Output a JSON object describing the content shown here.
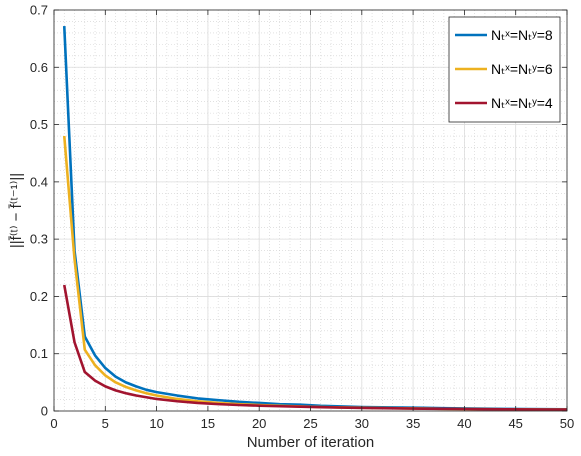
{
  "chart_data": {
    "type": "line",
    "title": "",
    "xlabel": "Number of iteration",
    "ylabel": "||f̄⁽ᵗ⁾ − f̄⁽ᵗ⁻¹⁾||",
    "xlim": [
      0,
      50
    ],
    "ylim": [
      0,
      0.7
    ],
    "xticks": [
      0,
      5,
      10,
      15,
      20,
      25,
      30,
      35,
      40,
      45,
      50
    ],
    "yticks": [
      0,
      0.1,
      0.2,
      0.3,
      0.4,
      0.5,
      0.6,
      0.7
    ],
    "grid": true,
    "minor_grid": true,
    "legend_position": "top-right",
    "series": [
      {
        "name": "Nₜˣ=Nₜʸ=8",
        "color": "#0072BD",
        "x": [
          1,
          2,
          3,
          4,
          5,
          6,
          7,
          8,
          9,
          10,
          12,
          14,
          16,
          18,
          20,
          22,
          24,
          26,
          28,
          30,
          32,
          34,
          36,
          38,
          40,
          42,
          44,
          46,
          48,
          50
        ],
        "y": [
          0.672,
          0.28,
          0.13,
          0.097,
          0.075,
          0.06,
          0.05,
          0.043,
          0.037,
          0.033,
          0.027,
          0.022,
          0.019,
          0.016,
          0.014,
          0.012,
          0.011,
          0.009,
          0.008,
          0.007,
          0.0065,
          0.006,
          0.0055,
          0.005,
          0.0045,
          0.004,
          0.0037,
          0.0034,
          0.0031,
          0.003
        ]
      },
      {
        "name": "Nₜˣ=Nₜʸ=6",
        "color": "#EDB120",
        "x": [
          1,
          2,
          3,
          4,
          5,
          6,
          7,
          8,
          9,
          10,
          12,
          14,
          16,
          18,
          20,
          22,
          24,
          26,
          28,
          30,
          32,
          34,
          36,
          38,
          40,
          42,
          44,
          46,
          48,
          50
        ],
        "y": [
          0.48,
          0.265,
          0.107,
          0.08,
          0.062,
          0.05,
          0.042,
          0.036,
          0.031,
          0.027,
          0.021,
          0.017,
          0.014,
          0.012,
          0.0105,
          0.009,
          0.008,
          0.007,
          0.0063,
          0.0057,
          0.0051,
          0.0046,
          0.0042,
          0.0038,
          0.0035,
          0.0032,
          0.003,
          0.0028,
          0.0026,
          0.0025
        ]
      },
      {
        "name": "Nₜˣ=Nₜʸ=4",
        "color": "#A2142F",
        "x": [
          1,
          2,
          3,
          4,
          5,
          6,
          7,
          8,
          9,
          10,
          12,
          14,
          16,
          18,
          20,
          22,
          24,
          26,
          28,
          30,
          32,
          34,
          36,
          38,
          40,
          42,
          44,
          46,
          48,
          50
        ],
        "y": [
          0.22,
          0.12,
          0.068,
          0.053,
          0.043,
          0.036,
          0.031,
          0.027,
          0.024,
          0.021,
          0.017,
          0.014,
          0.012,
          0.0105,
          0.0093,
          0.0083,
          0.0075,
          0.0067,
          0.006,
          0.0054,
          0.0049,
          0.0045,
          0.0041,
          0.0038,
          0.0035,
          0.0032,
          0.003,
          0.0028,
          0.0026,
          0.0025
        ]
      }
    ]
  }
}
